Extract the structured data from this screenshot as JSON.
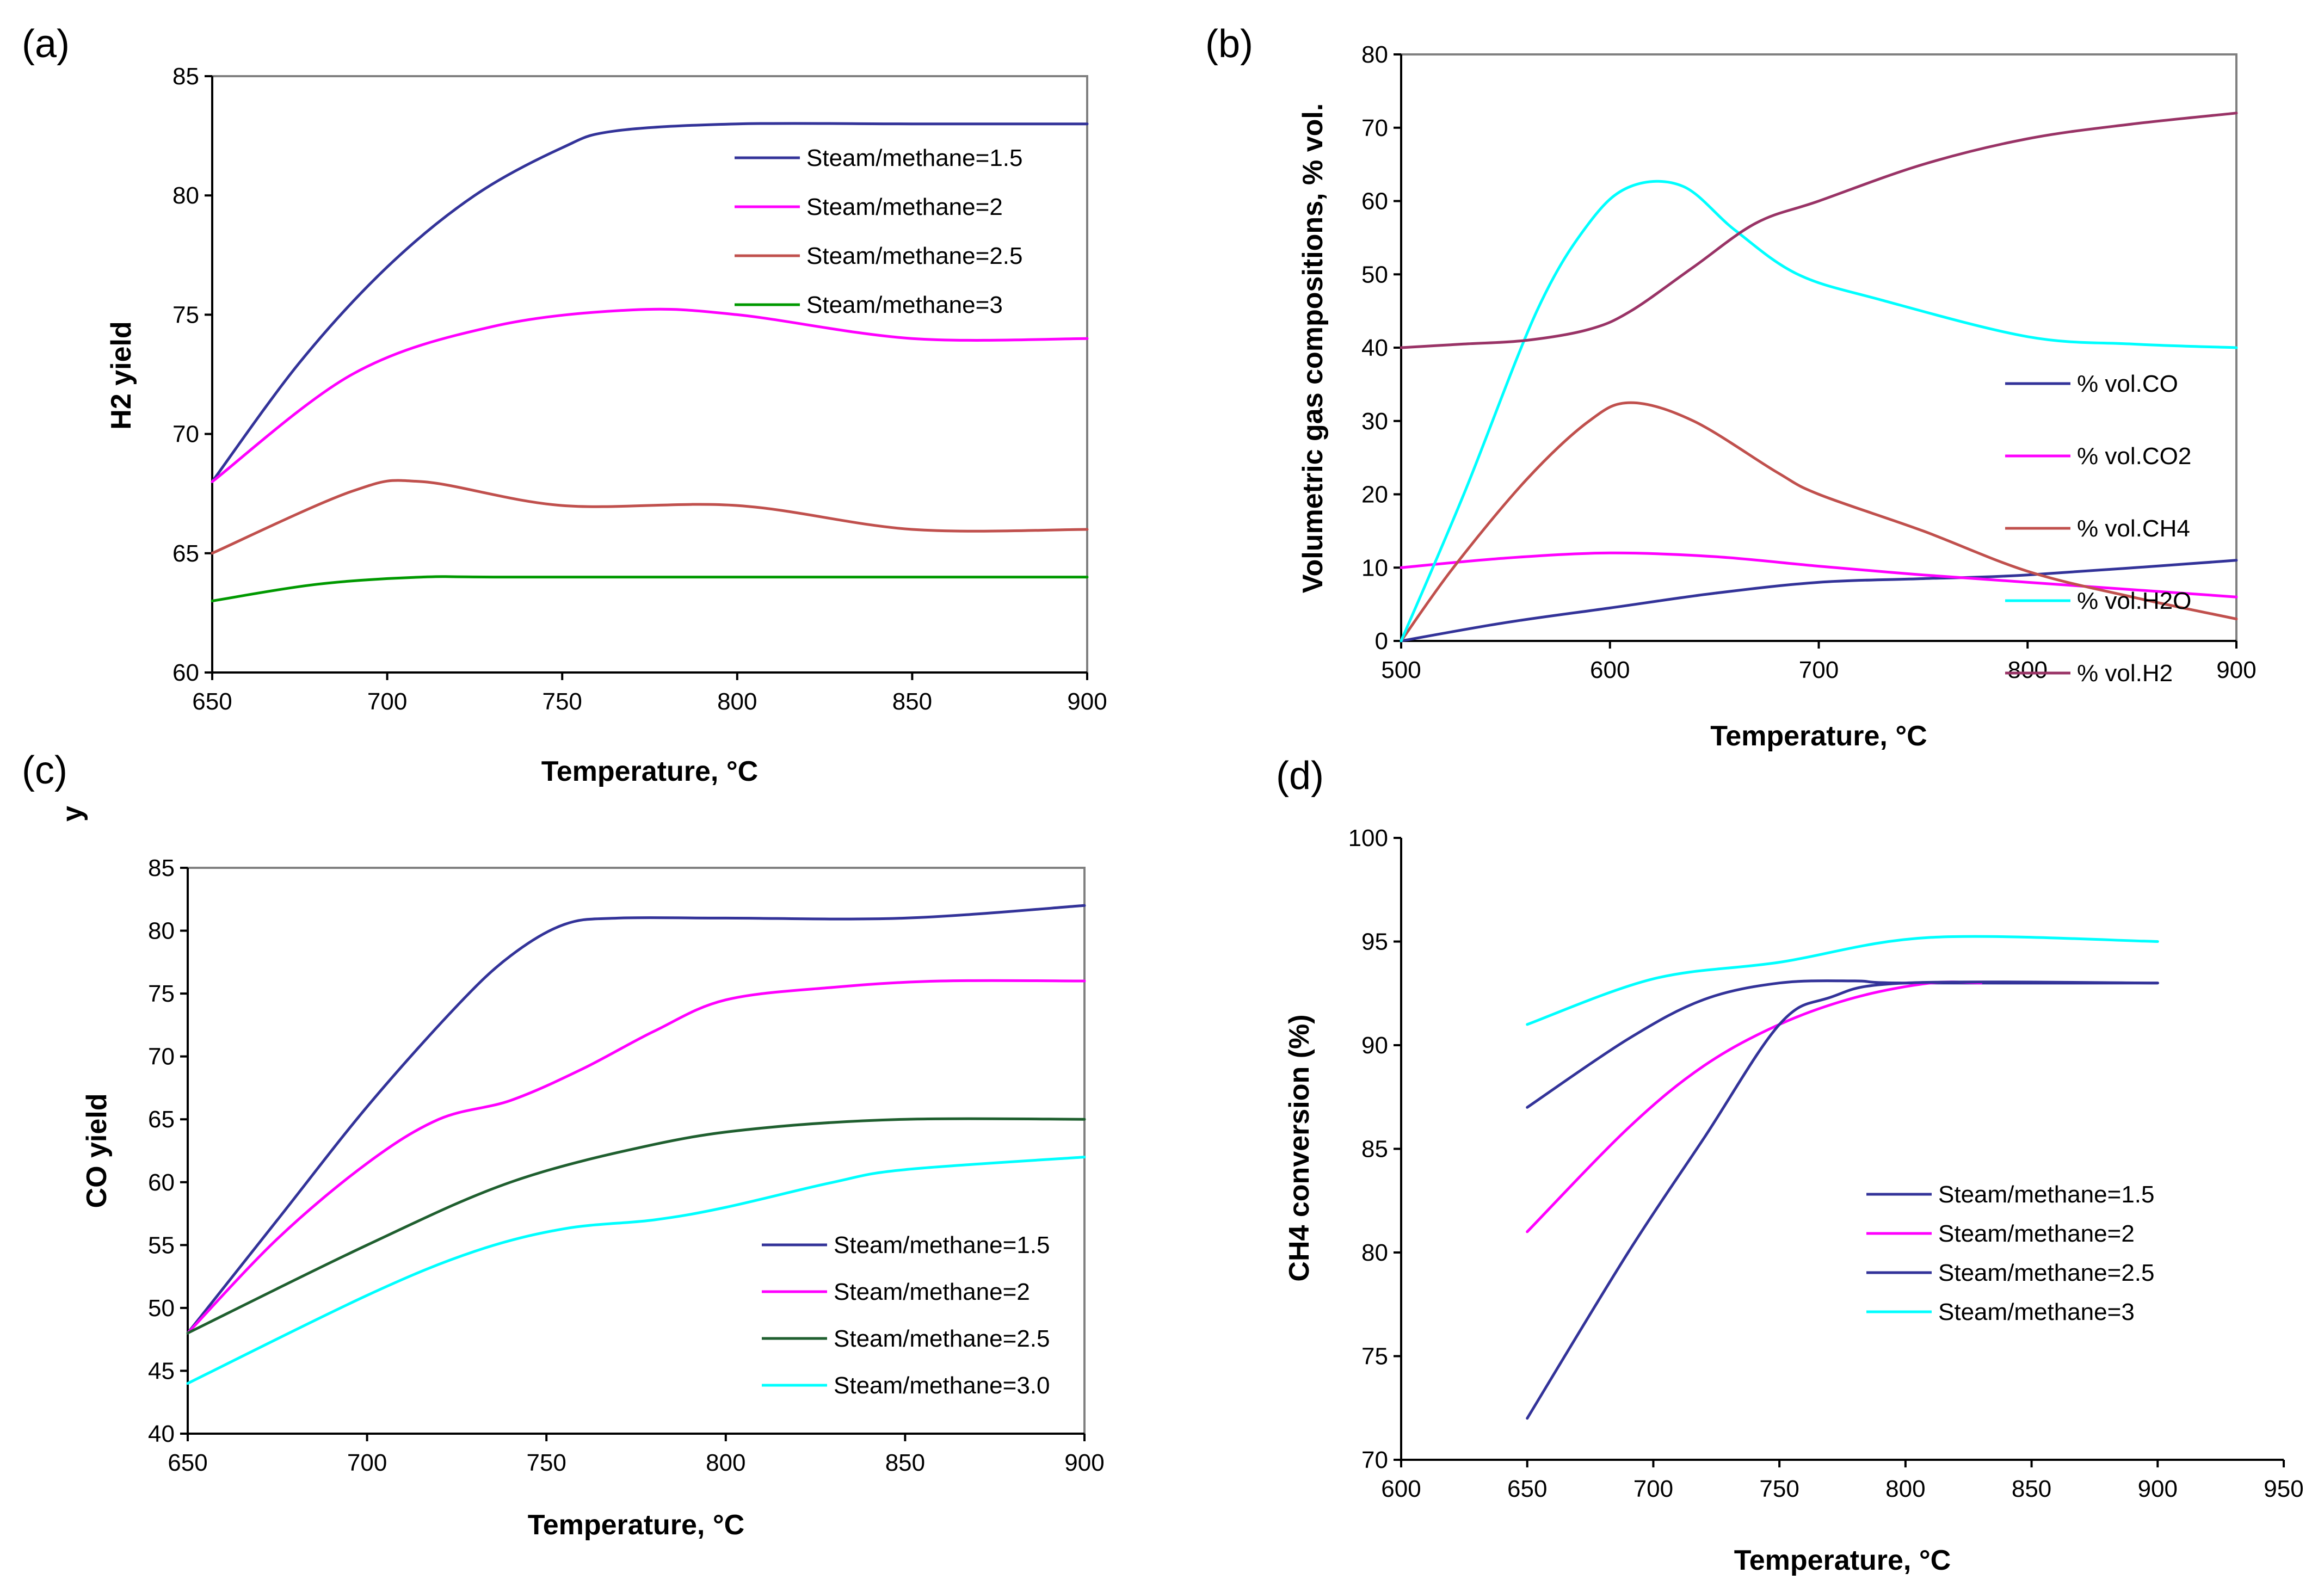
{
  "chart_data": [
    {
      "panel": "(a)",
      "type": "line",
      "xlabel": "Temperature, °C",
      "ylabel": "H2 yield",
      "xlim": [
        650,
        900
      ],
      "ylim": [
        60,
        85
      ],
      "xticks": [
        650,
        700,
        750,
        800,
        850,
        900
      ],
      "yticks": [
        60,
        65,
        70,
        75,
        80,
        85
      ],
      "legend_position": "top-right",
      "series": [
        {
          "name": "Steam/methane=1.5",
          "color": "#333399",
          "x": [
            650,
            675,
            700,
            725,
            750,
            765,
            800,
            850,
            900
          ],
          "y": [
            68,
            73,
            77,
            80,
            82,
            82.7,
            83,
            83,
            83
          ]
        },
        {
          "name": "Steam/methane=2",
          "color": "#ff00ff",
          "x": [
            650,
            690,
            730,
            770,
            800,
            850,
            900
          ],
          "y": [
            68,
            72.5,
            74.5,
            75.2,
            75,
            74,
            74
          ]
        },
        {
          "name": "Steam/methane=2.5",
          "color": "#c0504d",
          "x": [
            650,
            690,
            710,
            750,
            800,
            850,
            900
          ],
          "y": [
            65,
            67.6,
            68,
            67,
            67,
            66,
            66
          ]
        },
        {
          "name": "Steam/methane=3",
          "color": "#009900",
          "x": [
            650,
            680,
            710,
            740,
            900
          ],
          "y": [
            63,
            63.7,
            64,
            64,
            64
          ]
        }
      ]
    },
    {
      "panel": "(b)",
      "type": "line",
      "xlabel": "Temperature, °C",
      "ylabel": "Volumetric gas compositions, % vol.",
      "xlim": [
        500,
        900
      ],
      "ylim": [
        0,
        80
      ],
      "xticks": [
        500,
        600,
        700,
        800,
        900
      ],
      "yticks": [
        0,
        10,
        20,
        30,
        40,
        50,
        60,
        70,
        80
      ],
      "legend_position": "bottom-right",
      "series": [
        {
          "name": "% vol.CO",
          "color": "#333399",
          "x": [
            500,
            550,
            600,
            650,
            700,
            750,
            800,
            900
          ],
          "y": [
            0,
            2.5,
            4.5,
            6.5,
            8,
            8.5,
            9,
            11
          ]
        },
        {
          "name": "% vol.CO2",
          "color": "#ff00ff",
          "x": [
            500,
            550,
            600,
            650,
            700,
            750,
            800,
            850,
            900
          ],
          "y": [
            10,
            11.3,
            12,
            11.5,
            10.2,
            9,
            8,
            7,
            6
          ]
        },
        {
          "name": "% vol.CH4",
          "color": "#c0504d",
          "x": [
            500,
            525,
            560,
            590,
            610,
            640,
            680,
            700,
            750,
            800,
            850,
            900
          ],
          "y": [
            0,
            10,
            22,
            30,
            32.5,
            30,
            23,
            20,
            15,
            9.5,
            6,
            3
          ]
        },
        {
          "name": "% vol.H2O",
          "color": "#00ffff",
          "x": [
            500,
            530,
            565,
            590,
            610,
            635,
            660,
            690,
            730,
            800,
            850,
            900
          ],
          "y": [
            0,
            20,
            45,
            57,
            62,
            62,
            56,
            50,
            46.5,
            41.5,
            40.5,
            40
          ]
        },
        {
          "name": "% vol.H2",
          "color": "#993366",
          "x": [
            500,
            530,
            560,
            590,
            610,
            640,
            670,
            700,
            750,
            800,
            850,
            900
          ],
          "y": [
            40,
            40.5,
            41,
            42.5,
            45,
            51,
            57,
            60,
            65,
            68.5,
            70.5,
            72
          ]
        }
      ]
    },
    {
      "panel": "(c)",
      "type": "line",
      "xlabel": "Temperature, °C",
      "ylabel": "CO yield",
      "stray_label": "y",
      "xlim": [
        650,
        900
      ],
      "ylim": [
        40,
        85
      ],
      "xticks": [
        650,
        700,
        750,
        800,
        850,
        900
      ],
      "yticks": [
        40,
        45,
        50,
        55,
        60,
        65,
        70,
        75,
        80,
        85
      ],
      "legend_position": "bottom-right",
      "series": [
        {
          "name": "Steam/methane=1.5",
          "color": "#333399",
          "x": [
            650,
            675,
            700,
            725,
            740,
            755,
            770,
            800,
            850,
            900
          ],
          "y": [
            48,
            57,
            66,
            74,
            78,
            80.5,
            81,
            81,
            81,
            82
          ]
        },
        {
          "name": "Steam/methane=2",
          "color": "#ff00ff",
          "x": [
            650,
            675,
            700,
            720,
            740,
            760,
            780,
            800,
            830,
            860,
            900
          ],
          "y": [
            48,
            55.5,
            61.5,
            65,
            66.5,
            69,
            72,
            74.5,
            75.5,
            76,
            76
          ]
        },
        {
          "name": "Steam/methane=2.5",
          "color": "#1f5f2f",
          "x": [
            650,
            700,
            740,
            780,
            810,
            850,
            900
          ],
          "y": [
            48,
            55,
            60,
            63,
            64.3,
            65,
            65
          ]
        },
        {
          "name": "Steam/methane=3.0",
          "color": "#00ffff",
          "x": [
            650,
            700,
            730,
            755,
            780,
            800,
            830,
            850,
            900
          ],
          "y": [
            44,
            51,
            54.5,
            56.3,
            57,
            58,
            60,
            61,
            62
          ]
        }
      ]
    },
    {
      "panel": "(d)",
      "type": "line",
      "xlabel": "Temperature, °C",
      "ylabel": "CH4 conversion (%)",
      "xlim": [
        600,
        950
      ],
      "ylim": [
        70,
        100
      ],
      "xticks": [
        600,
        650,
        700,
        750,
        800,
        850,
        900,
        950
      ],
      "yticks": [
        70,
        75,
        80,
        85,
        90,
        95,
        100
      ],
      "legend_position": "bottom-right",
      "series": [
        {
          "name": "Steam/methane=1.5",
          "color": "#333399",
          "x": [
            650,
            690,
            720,
            750,
            780,
            800,
            900
          ],
          "y": [
            87,
            90.3,
            92.2,
            93,
            93.1,
            93,
            93
          ]
        },
        {
          "name": "Steam/methane=2",
          "color": "#ff00ff",
          "x": [
            650,
            690,
            720,
            750,
            780,
            810,
            830
          ],
          "y": [
            81,
            86,
            89,
            91,
            92.3,
            93,
            93
          ]
        },
        {
          "name": "Steam/methane=2.5",
          "color": "#333399",
          "x": [
            650,
            690,
            720,
            750,
            770,
            800,
            900
          ],
          "y": [
            72,
            80,
            85.5,
            91,
            92.3,
            93,
            93
          ]
        },
        {
          "name": "Steam/methane=3",
          "color": "#00ffff",
          "x": [
            650,
            700,
            750,
            810,
            900
          ],
          "y": [
            91,
            93.2,
            94,
            95.2,
            95
          ]
        }
      ]
    }
  ]
}
